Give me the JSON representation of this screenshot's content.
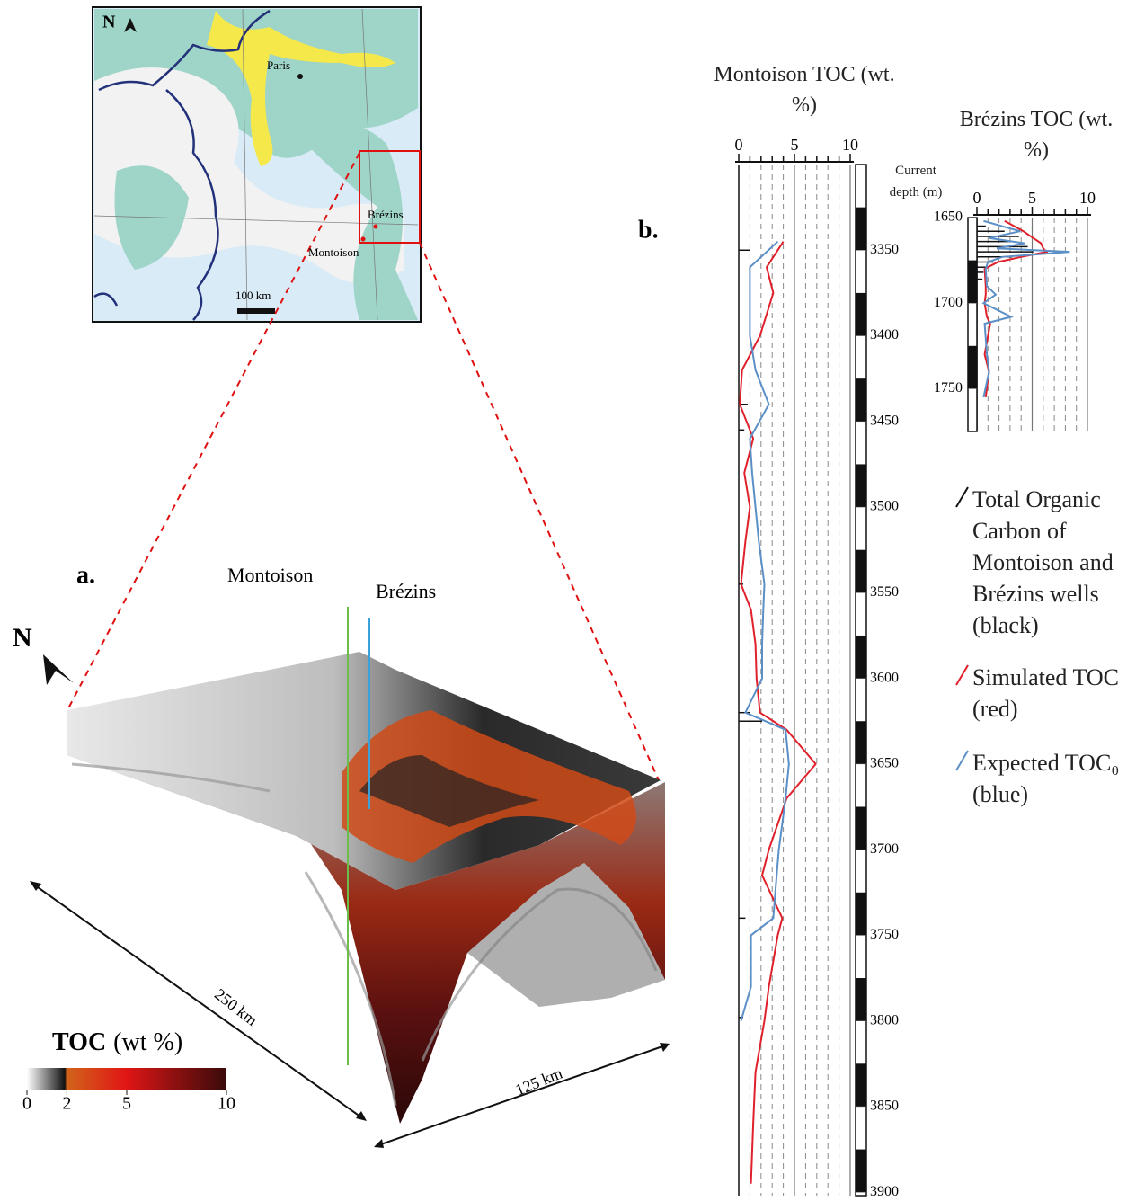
{
  "figure": {
    "panel_a_label": "a.",
    "panel_b_label": "b."
  },
  "map": {
    "north": "N",
    "cities": [
      "Paris",
      "Brézins",
      "Montoison"
    ],
    "scale": "100 km"
  },
  "block": {
    "north": "N",
    "wells": [
      "Montoison",
      "Brézins"
    ],
    "dimensions": [
      "250 km",
      "125 km"
    ],
    "colorbar": {
      "label_bold": "TOC",
      "label": "(wt %)",
      "lim": [
        0,
        10
      ],
      "ticks": [
        0,
        2,
        5,
        10
      ]
    }
  },
  "chart_data": [
    {
      "type": "line",
      "title": "Montoison TOC (wt. %)",
      "depth_label": "Current depth (m)",
      "xlim": [
        0,
        10
      ],
      "xticks": [
        0,
        5,
        10
      ],
      "xminor": [
        1,
        2,
        3,
        4,
        6,
        7,
        8,
        9
      ],
      "ylim": [
        3300,
        3902
      ],
      "yticks": [
        3350,
        3400,
        3450,
        3500,
        3550,
        3600,
        3650,
        3700,
        3750,
        3800,
        3850,
        3900
      ],
      "y": [
        3345,
        3360,
        3375,
        3400,
        3420,
        3440,
        3460,
        3480,
        3500,
        3520,
        3545,
        3560,
        3580,
        3600,
        3620,
        3630,
        3650,
        3670,
        3700,
        3715,
        3740,
        3750,
        3780,
        3800,
        3830,
        3860,
        3895
      ],
      "measured": {
        "name": "Total Organic Carbon of Montoison and Brézins wells (black)",
        "color": "#111111",
        "y": [
          3350,
          3440,
          3455,
          3545,
          3620,
          3625,
          3740,
          3798
        ],
        "values": [
          1.0,
          0.8,
          0.5,
          0.4,
          1.0,
          2.1,
          0.6,
          0.4
        ]
      },
      "series": [
        {
          "name": "Simulated TOC (red)",
          "color": "#e0202a",
          "values": [
            4.0,
            2.5,
            3.1,
            1.9,
            0.3,
            0.1,
            1.3,
            0.5,
            1.0,
            0.6,
            0.2,
            1.1,
            1.5,
            1.6,
            1.9,
            4.3,
            6.9,
            4.3,
            2.7,
            2.1,
            3.9,
            3.5,
            2.7,
            2.3,
            1.5,
            1.3,
            1.1
          ]
        },
        {
          "name": "Expected TOC₀ (blue)",
          "color": "#5b8fc7",
          "values": [
            3.5,
            1.0,
            1.0,
            1.0,
            1.5,
            2.7,
            1.0,
            1.2,
            1.5,
            1.8,
            2.3,
            2.2,
            2.1,
            2.1,
            0.6,
            4.2,
            4.5,
            4.2,
            3.6,
            3.4,
            3.1,
            1.1,
            1.1,
            0.2,
            null,
            null,
            null
          ]
        }
      ]
    },
    {
      "type": "line",
      "title": "Brézins TOC (wt. %)",
      "xlim": [
        0,
        10
      ],
      "xticks": [
        0,
        5,
        10
      ],
      "xminor": [
        1,
        2,
        3,
        4,
        6,
        7,
        8,
        9
      ],
      "ylim": [
        1650,
        1775
      ],
      "yticks": [
        1650,
        1700,
        1750
      ],
      "y": [
        1652,
        1658,
        1662,
        1665,
        1668,
        1670,
        1673,
        1676,
        1680,
        1690,
        1695,
        1700,
        1708,
        1712,
        1730,
        1740,
        1755
      ],
      "measured": {
        "color": "#111111",
        "y": [
          1655,
          1658,
          1661,
          1664,
          1667,
          1670,
          1673,
          1676,
          1679,
          1682,
          1686
        ],
        "values": [
          0.8,
          2.5,
          3.8,
          2.9,
          4.6,
          5.1,
          3.2,
          1.5,
          0.9,
          0.6,
          0.5
        ]
      },
      "series": [
        {
          "color": "#e0202a",
          "values": [
            2.5,
            4.2,
            5.1,
            5.8,
            6.0,
            6.3,
            4.0,
            1.9,
            0.7,
            0.8,
            0.8,
            0.7,
            0.9,
            1.2,
            0.7,
            1.1,
            0.8
          ]
        },
        {
          "color": "#5b8fc7",
          "values": [
            0.6,
            3.9,
            1.1,
            4.3,
            1.8,
            8.4,
            2.3,
            1.0,
            0.8,
            0.9,
            1.7,
            0.6,
            3.1,
            0.7,
            0.9,
            1.1,
            0.6
          ]
        }
      ]
    }
  ]
}
